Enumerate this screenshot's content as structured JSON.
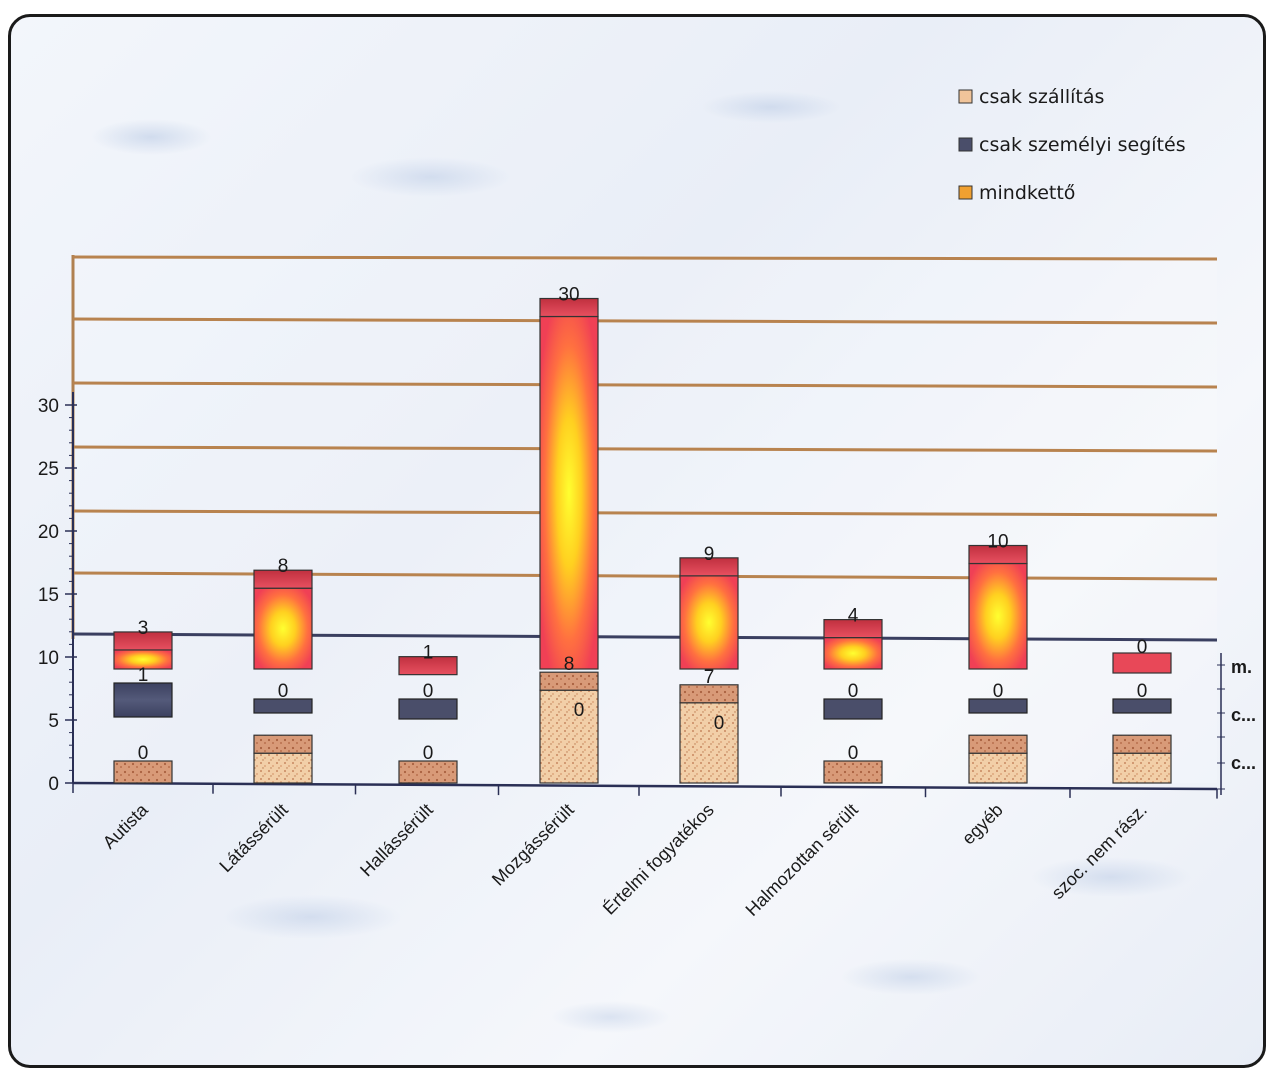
{
  "chart_data": {
    "type": "bar",
    "title": "",
    "xlabel": "",
    "ylabel": "",
    "ylim": [
      0,
      35
    ],
    "yticks": [
      0,
      5,
      10,
      15,
      20,
      25,
      30
    ],
    "grid": true,
    "legend_position": "top-right",
    "categories": [
      "Autista",
      "Látássérült",
      "Hallássérült",
      "Mozgássérült",
      "Értelmi fogyatékos",
      "Halmozottan sérült",
      "egyéb",
      "szoc. nem rász."
    ],
    "series": [
      {
        "name": "csak szállítás",
        "color": "#e8b48a",
        "values": [
          0,
          3,
          0,
          8,
          7,
          0,
          3,
          3
        ],
        "labels": [
          "0",
          "",
          "0",
          "8",
          "7",
          "0",
          "",
          ""
        ]
      },
      {
        "name": "csak személyi segítés",
        "color": "#4a4e6a",
        "values": [
          1,
          0,
          0,
          0,
          0,
          0,
          0,
          0
        ],
        "labels": [
          "1",
          "0",
          "0",
          "0",
          "0",
          "0",
          "0",
          "0"
        ]
      },
      {
        "name": "mindkettő",
        "color": "#f0a030",
        "values": [
          3,
          8,
          1,
          30,
          9,
          4,
          10,
          0
        ],
        "labels": [
          "3",
          "8",
          "1",
          "30",
          "9",
          "4",
          "10",
          "0"
        ]
      }
    ],
    "bottom_labels": [
      "",
      "",
      "",
      "0",
      "0",
      "",
      "",
      ""
    ],
    "side_labels": [
      "m.",
      "c...",
      "c..."
    ]
  },
  "legend": [
    {
      "label": "csak szállítás",
      "color": "#e8b48a"
    },
    {
      "label": "csak személyi segítés",
      "color": "#4a4e6a"
    },
    {
      "label": "mindkettő",
      "color": "#f0a030"
    }
  ]
}
